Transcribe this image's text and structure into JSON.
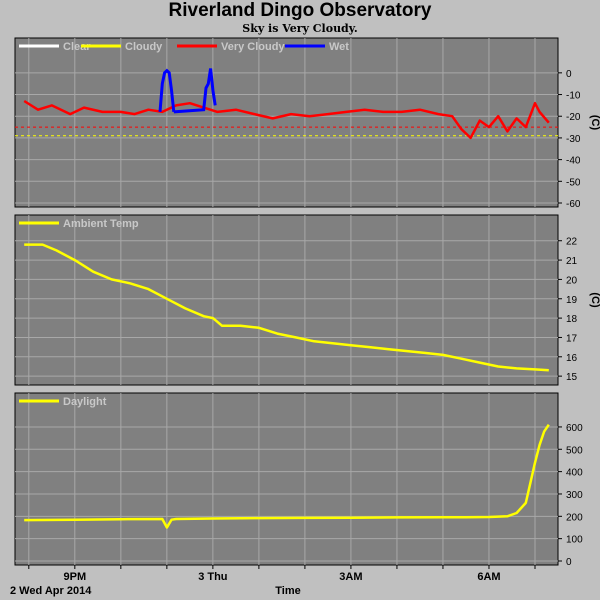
{
  "title": "Riverland Dingo Observatory",
  "subtitle": "Sky is Very Cloudy.",
  "x_axis": {
    "label": "Time",
    "date_label": "2 Wed Apr 2014",
    "ticks": [
      "9PM",
      "3 Thu",
      "3AM",
      "6AM"
    ]
  },
  "chart_data": [
    {
      "type": "line",
      "name": "sky",
      "ylabel": "(C)",
      "ylim": [
        -60,
        5
      ],
      "yticks": [
        0,
        -10,
        -20,
        -30,
        -40,
        -50,
        -60
      ],
      "legend": [
        {
          "name": "Clear",
          "color": "#ffffff"
        },
        {
          "name": "Cloudy",
          "color": "#ffff00"
        },
        {
          "name": "Very Cloudy",
          "color": "#ff0000"
        },
        {
          "name": "Wet",
          "color": "#0000ff"
        }
      ],
      "thresholds": [
        {
          "value": -25,
          "color": "#ff0000"
        },
        {
          "value": -29,
          "color": "#ffff00"
        }
      ],
      "x_hours": [
        19.9,
        20.2,
        20.5,
        20.9,
        21.2,
        21.6,
        22.0,
        22.3,
        22.6,
        22.9,
        23.2,
        23.5,
        23.8,
        24.1,
        24.5,
        24.9,
        25.3,
        25.7,
        26.1,
        26.5,
        26.9,
        27.3,
        27.7,
        28.1,
        28.5,
        28.9,
        29.2,
        29.4,
        29.6,
        29.8,
        30.0,
        30.2,
        30.4,
        30.6,
        30.8,
        31.0,
        31.1,
        31.3
      ],
      "values": [
        -13,
        -17,
        -15,
        -19,
        -16,
        -18,
        -18,
        -19,
        -17,
        -18,
        -15,
        -14,
        -16,
        -18,
        -17,
        -19,
        -21,
        -19,
        -20,
        -19,
        -18,
        -17,
        -18,
        -18,
        -17,
        -19,
        -20,
        -26,
        -30,
        -22,
        -25,
        -20,
        -27,
        -21,
        -25,
        -14,
        -18,
        -23
      ],
      "wet_x_hours": [
        22.85,
        22.9,
        22.95,
        23.0,
        23.05,
        23.1,
        23.15,
        23.15,
        23.8,
        23.85,
        23.9,
        23.95,
        24.0,
        24.05
      ],
      "wet_values": [
        -18,
        -5,
        0,
        1,
        0,
        -8,
        -18,
        -18,
        -17,
        -7,
        -5,
        2,
        -8,
        -15
      ]
    },
    {
      "type": "line",
      "name": "ambient",
      "ylabel": "(C)",
      "ylim": [
        14.8,
        22.4
      ],
      "yticks": [
        22,
        21,
        20,
        19,
        18,
        17,
        16,
        15
      ],
      "legend": [
        {
          "name": "Ambient Temp",
          "color": "#ffff00"
        }
      ],
      "x_hours": [
        19.9,
        20.3,
        20.6,
        21.0,
        21.4,
        21.8,
        22.2,
        22.6,
        23.0,
        23.4,
        23.8,
        24.0,
        24.2,
        24.6,
        25.0,
        25.4,
        25.8,
        26.2,
        26.6,
        27.0,
        27.4,
        27.8,
        28.2,
        28.6,
        29.0,
        29.4,
        29.8,
        30.2,
        30.6,
        31.0,
        31.3
      ],
      "values": [
        21.8,
        21.8,
        21.5,
        21.0,
        20.4,
        20.0,
        19.8,
        19.5,
        19.0,
        18.5,
        18.1,
        18.0,
        17.6,
        17.6,
        17.5,
        17.2,
        17.0,
        16.8,
        16.7,
        16.6,
        16.5,
        16.4,
        16.3,
        16.2,
        16.1,
        15.9,
        15.7,
        15.5,
        15.4,
        15.35,
        15.3
      ]
    },
    {
      "type": "line",
      "name": "daylight",
      "ylabel": "",
      "ylim": [
        0,
        640
      ],
      "yticks": [
        600,
        500,
        400,
        300,
        200,
        100,
        0
      ],
      "legend": [
        {
          "name": "Daylight",
          "color": "#ffff00"
        }
      ],
      "x_hours": [
        19.9,
        21.0,
        22.0,
        22.9,
        23.0,
        23.1,
        23.2,
        24.0,
        25.0,
        26.0,
        27.0,
        28.0,
        29.0,
        29.5,
        30.0,
        30.4,
        30.6,
        30.8,
        30.9,
        31.0,
        31.1,
        31.2,
        31.3
      ],
      "values": [
        183,
        185,
        187,
        188,
        150,
        185,
        188,
        190,
        192,
        193,
        194,
        195,
        196,
        196,
        197,
        200,
        215,
        260,
        350,
        440,
        520,
        580,
        610
      ]
    }
  ]
}
